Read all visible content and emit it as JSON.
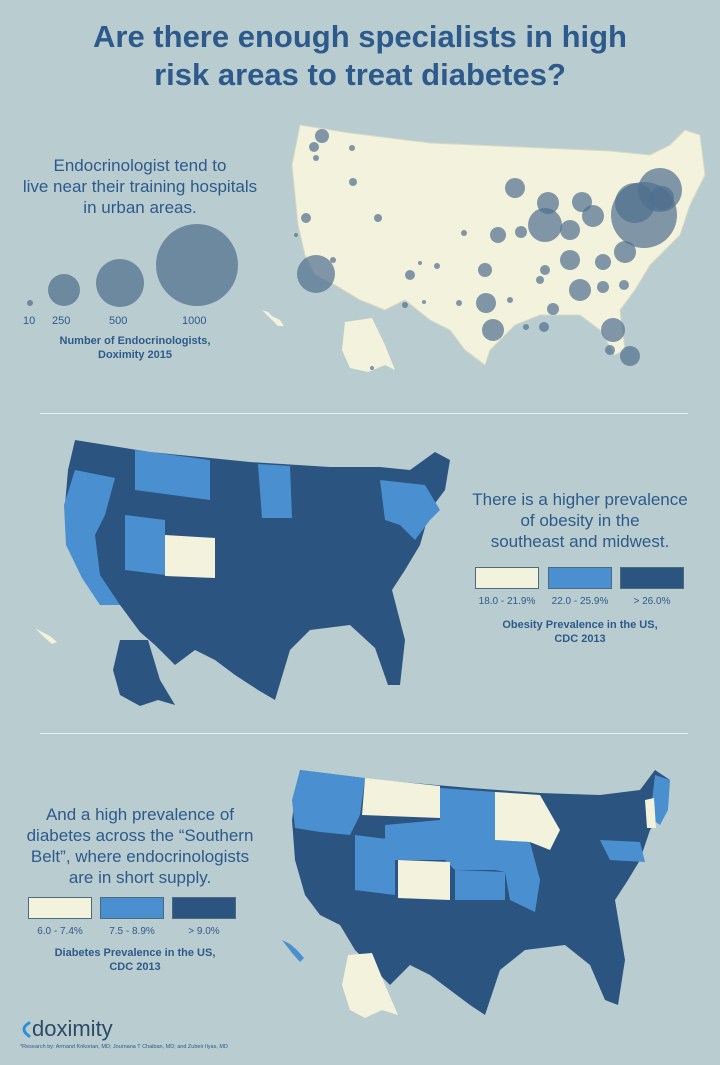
{
  "title": {
    "line1": "Are there enough specialists in high",
    "line2": "risk areas to treat diabetes?"
  },
  "section1": {
    "text": [
      "Endocrinologist tend to",
      "live near their training hospitals",
      "in urban areas."
    ],
    "bubble_legend": {
      "values": [
        "10",
        "250",
        "500",
        "1000"
      ]
    },
    "caption": [
      "Number of Endocrinologists,",
      "Doximity 2015"
    ]
  },
  "section2": {
    "text": [
      "There is a higher prevalence",
      "of obesity in the",
      "southeast and midwest."
    ],
    "legend": [
      "18.0 - 21.9%",
      "22.0 - 25.9%",
      "> 26.0%"
    ],
    "caption": [
      "Obesity Prevalence in the US,",
      "CDC 2013"
    ]
  },
  "section3": {
    "text": [
      "And a high prevalence of",
      "diabetes across the “Southern",
      "Belt”, where endocrinologists",
      "are in short supply."
    ],
    "legend": [
      "6.0 - 7.4%",
      "7.5 - 8.9%",
      "> 9.0%"
    ],
    "caption": [
      "Diabetes Prevalence in the US,",
      "CDC 2013"
    ]
  },
  "footer": {
    "logo": "doximity",
    "credit": "*Research by: Armand Krikorian, MD; Journana T Chaiban, MD; and Zubeir Ilyas, MD"
  },
  "colors": {
    "background": "#b9cdd1",
    "title": "#2d5a8a",
    "low": "#f3f2dc",
    "mid": "#4a90d0",
    "high": "#2c5480",
    "bubble": "#5f7d98"
  }
}
